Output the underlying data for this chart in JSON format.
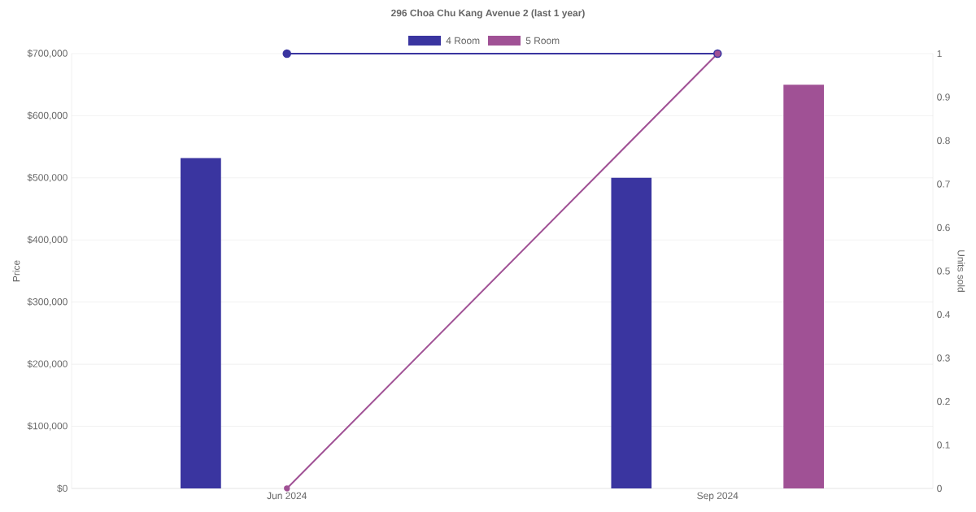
{
  "chart_data": {
    "type": "bar",
    "title": "296 Choa Chu Kang Avenue 2 (last 1 year)",
    "categories": [
      "Jun 2024",
      "Sep 2024"
    ],
    "series": [
      {
        "name": "4 Room",
        "color": "#3a35a0",
        "values": [
          532000,
          500000
        ]
      },
      {
        "name": "5 Room",
        "color": "#a05195",
        "values": [
          null,
          650000
        ]
      },
      {
        "type": "line",
        "axis": "y2",
        "color": "#3a35a0",
        "values": [
          1,
          1
        ]
      },
      {
        "type": "line",
        "axis": "y2",
        "color": "#a05195",
        "values": [
          0,
          1
        ]
      }
    ],
    "ylabel": "Price",
    "y2label": "Units sold",
    "ylim": [
      0,
      700000
    ],
    "yticks": [
      {
        "value": 0,
        "label": "$0"
      },
      {
        "value": 100000,
        "label": "$100,000"
      },
      {
        "value": 200000,
        "label": "$200,000"
      },
      {
        "value": 300000,
        "label": "$300,000"
      },
      {
        "value": 400000,
        "label": "$400,000"
      },
      {
        "value": 500000,
        "label": "$500,000"
      },
      {
        "value": 600000,
        "label": "$600,000"
      },
      {
        "value": 700000,
        "label": "$700,000"
      }
    ],
    "y2lim": [
      0,
      1
    ],
    "y2ticks": [
      0,
      0.1,
      0.2,
      0.3,
      0.4,
      0.5,
      0.6,
      0.7,
      0.8,
      0.9,
      1
    ],
    "grid": "y",
    "legend": "top",
    "marker": "circle"
  }
}
